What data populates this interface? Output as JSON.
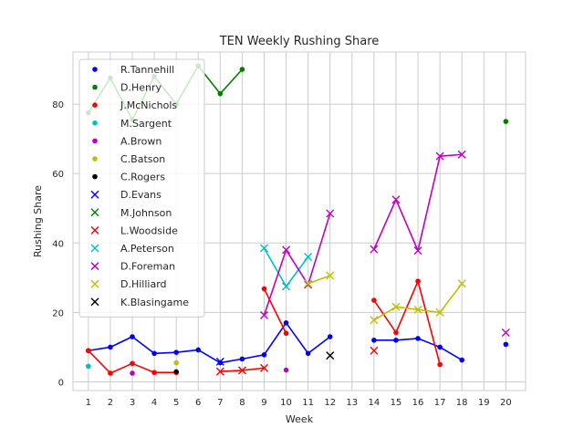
{
  "chart_data": {
    "type": "line",
    "title": "TEN Weekly Rushing Share",
    "xlabel": "Week",
    "ylabel": "Rushing Share",
    "xlim": [
      0.3,
      20.9
    ],
    "ylim": [
      -2.5,
      95
    ],
    "x_ticks": [
      1,
      2,
      3,
      4,
      5,
      6,
      7,
      8,
      9,
      10,
      11,
      12,
      13,
      14,
      15,
      16,
      17,
      18,
      19,
      20
    ],
    "y_ticks": [
      0,
      20,
      40,
      60,
      80
    ],
    "grid": true,
    "legend_position": "upper-left",
    "series": [
      {
        "name": "R.Tannehill",
        "color": "#0000ff",
        "marker": "dot",
        "points": [
          [
            1,
            9
          ],
          [
            2,
            10
          ],
          [
            3,
            13
          ],
          [
            4,
            8.2
          ],
          [
            5,
            8.5
          ],
          [
            6,
            9.2
          ],
          [
            7,
            5.5
          ],
          [
            8,
            6.6
          ],
          [
            9,
            7.8
          ],
          [
            10,
            17
          ],
          [
            11,
            8.2
          ],
          [
            12,
            13
          ],
          [
            14,
            12
          ],
          [
            15,
            12
          ],
          [
            16,
            12.5
          ],
          [
            17,
            10
          ],
          [
            18,
            6.3
          ],
          [
            20,
            10.8
          ]
        ]
      },
      {
        "name": "D.Henry",
        "color": "#008000",
        "marker": "dot",
        "points": [
          [
            1,
            77.5
          ],
          [
            2,
            87.5
          ],
          [
            3,
            75.5
          ],
          [
            4,
            88
          ],
          [
            5,
            80
          ],
          [
            6,
            91
          ],
          [
            7,
            83
          ],
          [
            8,
            90
          ],
          [
            20,
            75
          ]
        ]
      },
      {
        "name": "J.McNichols",
        "color": "#ff0000",
        "marker": "dot",
        "points": [
          [
            1,
            9
          ],
          [
            2,
            2.5
          ],
          [
            3,
            5.3
          ],
          [
            4,
            2.7
          ],
          [
            5,
            2.7
          ],
          [
            9,
            26.8
          ],
          [
            10,
            14
          ],
          [
            14,
            23.5
          ],
          [
            15,
            14.2
          ],
          [
            16,
            29
          ],
          [
            17,
            5
          ]
        ]
      },
      {
        "name": "M.Sargent",
        "color": "#00bfbf",
        "marker": "dot",
        "points": [
          [
            1,
            4.5
          ]
        ]
      },
      {
        "name": "A.Brown",
        "color": "#bf00bf",
        "marker": "dot",
        "points": [
          [
            3,
            2.5
          ],
          [
            10,
            3.4
          ]
        ]
      },
      {
        "name": "C.Batson",
        "color": "#bfbf00",
        "marker": "dot",
        "points": [
          [
            5,
            5.5
          ]
        ]
      },
      {
        "name": "C.Rogers",
        "color": "#000000",
        "marker": "dot",
        "points": [
          [
            5,
            2.9
          ]
        ]
      },
      {
        "name": "D.Evans",
        "color": "#0000ff",
        "marker": "x",
        "points": [
          [
            7,
            5.8
          ]
        ]
      },
      {
        "name": "M.Johnson",
        "color": "#008000",
        "marker": "x",
        "points": []
      },
      {
        "name": "L.Woodside",
        "color": "#ff0000",
        "marker": "x",
        "points": [
          [
            7,
            3
          ],
          [
            8,
            3.3
          ],
          [
            9,
            4
          ],
          [
            14,
            9
          ]
        ]
      },
      {
        "name": "A.Peterson",
        "color": "#00bfbf",
        "marker": "x",
        "points": [
          [
            9,
            38.5
          ],
          [
            10,
            27.5
          ],
          [
            11,
            36
          ]
        ]
      },
      {
        "name": "D.Foreman",
        "color": "#bf00bf",
        "marker": "x",
        "points": [
          [
            9,
            19.2
          ],
          [
            10,
            38
          ],
          [
            11,
            28
          ],
          [
            12,
            48.5
          ],
          [
            14,
            38.2
          ],
          [
            15,
            52.5
          ],
          [
            16,
            37.8
          ],
          [
            17,
            65
          ],
          [
            18,
            65.5
          ],
          [
            20,
            14.2
          ]
        ]
      },
      {
        "name": "D.Hilliard",
        "color": "#bfbf00",
        "marker": "x",
        "points": [
          [
            11,
            28.3
          ],
          [
            12,
            30.6
          ],
          [
            14,
            17.8
          ],
          [
            15,
            21.6
          ],
          [
            16,
            20.8
          ],
          [
            17,
            20
          ],
          [
            18,
            28.3
          ]
        ]
      },
      {
        "name": "K.Blasingame",
        "color": "#000000",
        "marker": "x",
        "points": [
          [
            12,
            7.6
          ]
        ]
      }
    ]
  }
}
